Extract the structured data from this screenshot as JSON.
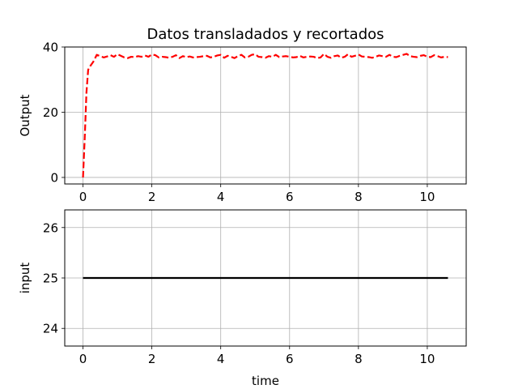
{
  "chart_data": [
    {
      "type": "line",
      "title": "Datos transladados y recortados",
      "xlabel": "",
      "ylabel": "Output",
      "xlim": [
        -0.53,
        11.13
      ],
      "ylim": [
        -2,
        40
      ],
      "xticks": [
        0,
        2,
        4,
        6,
        8,
        10
      ],
      "yticks": [
        0,
        20,
        40
      ],
      "grid": true,
      "series": [
        {
          "color": "#ff0000",
          "linestyle": "dashed",
          "x": [
            0,
            0.05,
            0.1,
            0.15,
            0.2,
            0.3,
            0.4,
            0.5,
            0.6,
            0.7,
            0.8,
            0.9,
            1.0,
            1.1,
            1.2,
            1.3,
            1.4,
            1.5,
            1.6,
            1.7,
            1.8,
            1.9,
            2.0,
            2.1,
            2.2,
            2.3,
            2.4,
            2.5,
            2.6,
            2.7,
            2.8,
            2.9,
            3.0,
            3.1,
            3.2,
            3.3,
            3.4,
            3.5,
            3.6,
            3.7,
            3.8,
            3.9,
            4.0,
            4.1,
            4.2,
            4.3,
            4.4,
            4.5,
            4.6,
            4.7,
            4.8,
            4.9,
            5.0,
            5.1,
            5.2,
            5.3,
            5.4,
            5.5,
            5.6,
            5.7,
            5.8,
            5.9,
            6.0,
            6.1,
            6.2,
            6.3,
            6.4,
            6.5,
            6.6,
            6.7,
            6.8,
            6.9,
            7.0,
            7.1,
            7.2,
            7.3,
            7.4,
            7.5,
            7.6,
            7.7,
            7.8,
            7.9,
            8.0,
            8.1,
            8.2,
            8.3,
            8.4,
            8.5,
            8.6,
            8.7,
            8.8,
            8.9,
            9.0,
            9.1,
            9.2,
            9.3,
            9.4,
            9.5,
            9.6,
            9.7,
            9.8,
            9.9,
            10.0,
            10.1,
            10.2,
            10.3,
            10.4,
            10.5,
            10.6
          ],
          "y": [
            0,
            12,
            26,
            33,
            34,
            35.5,
            37.6,
            37.2,
            36.8,
            37.1,
            37.5,
            37.0,
            37.8,
            37.3,
            36.8,
            36.6,
            37.0,
            36.9,
            37.2,
            37.0,
            37.4,
            37.0,
            37.7,
            37.5,
            36.8,
            37.0,
            36.9,
            36.7,
            37.0,
            37.5,
            36.6,
            37.2,
            36.9,
            37.1,
            36.8,
            36.9,
            37.0,
            37.2,
            37.3,
            36.8,
            37.0,
            37.4,
            37.6,
            36.7,
            37.3,
            37.0,
            36.6,
            37.2,
            37.6,
            36.8,
            37.0,
            37.6,
            37.8,
            37.0,
            36.9,
            36.7,
            37.2,
            37.0,
            37.6,
            36.9,
            37.1,
            37.2,
            37.0,
            36.8,
            36.9,
            37.3,
            36.8,
            37.0,
            37.1,
            37.0,
            36.6,
            36.8,
            37.9,
            37.0,
            36.7,
            37.2,
            37.4,
            36.7,
            37.0,
            37.8,
            37.0,
            37.3,
            37.7,
            37.1,
            37.0,
            36.9,
            36.7,
            37.0,
            37.4,
            37.2,
            37.0,
            37.6,
            37.0,
            36.9,
            37.3,
            37.6,
            37.9,
            37.2,
            37.0,
            36.9,
            37.3,
            37.5,
            37.0,
            36.9,
            37.5,
            37.2,
            36.8,
            37.0,
            36.9
          ]
        }
      ]
    },
    {
      "type": "line",
      "title": "",
      "xlabel": "time",
      "ylabel": "input",
      "xlim": [
        -0.53,
        11.13
      ],
      "ylim": [
        23.65,
        26.35
      ],
      "xticks": [
        0,
        2,
        4,
        6,
        8,
        10
      ],
      "yticks": [
        24,
        25,
        26
      ],
      "grid": true,
      "series": [
        {
          "color": "#000000",
          "linestyle": "solid",
          "x": [
            0,
            10.6
          ],
          "y": [
            25,
            25
          ]
        }
      ]
    }
  ]
}
